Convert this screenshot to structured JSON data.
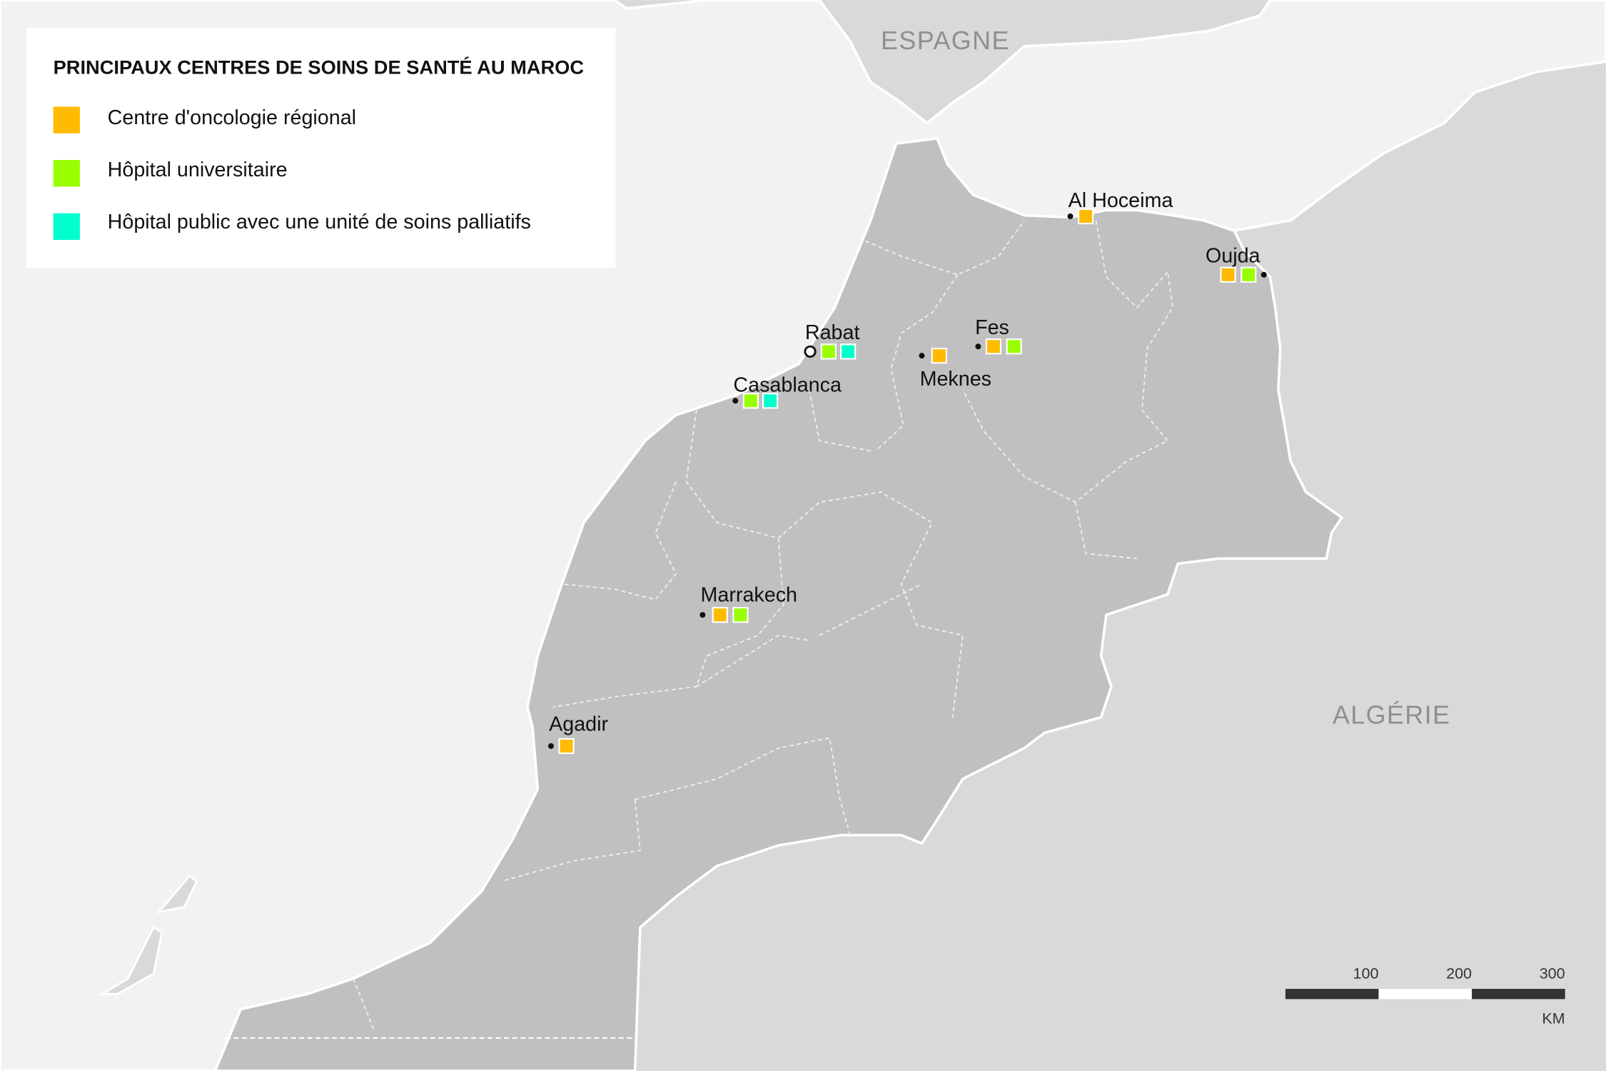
{
  "legend": {
    "title": "PRINCIPAUX CENTRES DE SOINS DE SANTÉ AU MAROC",
    "items": [
      {
        "label": "Centre d'oncologie régional",
        "color": "#FFBB00",
        "type": "oncology"
      },
      {
        "label": "Hôpital universitaire",
        "color": "#99FF00",
        "type": "university"
      },
      {
        "label": "Hôpital public avec une unité de soins palliatifs",
        "color": "#00FFCC",
        "type": "palliative"
      }
    ]
  },
  "countries": {
    "spain": "ESPAGNE",
    "algeria": "ALGÉRIE"
  },
  "colors": {
    "sea": "#f2f2f2",
    "morocco": "#c0c0c0",
    "neighbors": "#d9d9d9"
  },
  "cities": [
    {
      "name": "Al Hoceima",
      "facilities": [
        "oncology"
      ],
      "capital": false
    },
    {
      "name": "Oujda",
      "facilities": [
        "oncology",
        "university"
      ],
      "capital": false
    },
    {
      "name": "Rabat",
      "facilities": [
        "university",
        "palliative"
      ],
      "capital": true
    },
    {
      "name": "Casablanca",
      "facilities": [
        "university",
        "palliative"
      ],
      "capital": false
    },
    {
      "name": "Meknes",
      "facilities": [
        "oncology"
      ],
      "capital": false
    },
    {
      "name": "Fes",
      "facilities": [
        "oncology",
        "university"
      ],
      "capital": false
    },
    {
      "name": "Marrakech",
      "facilities": [
        "oncology",
        "university"
      ],
      "capital": false
    },
    {
      "name": "Agadir",
      "facilities": [
        "oncology"
      ],
      "capital": false
    }
  ],
  "scale": {
    "ticks": [
      "100",
      "200",
      "300"
    ],
    "unit": "KM"
  }
}
